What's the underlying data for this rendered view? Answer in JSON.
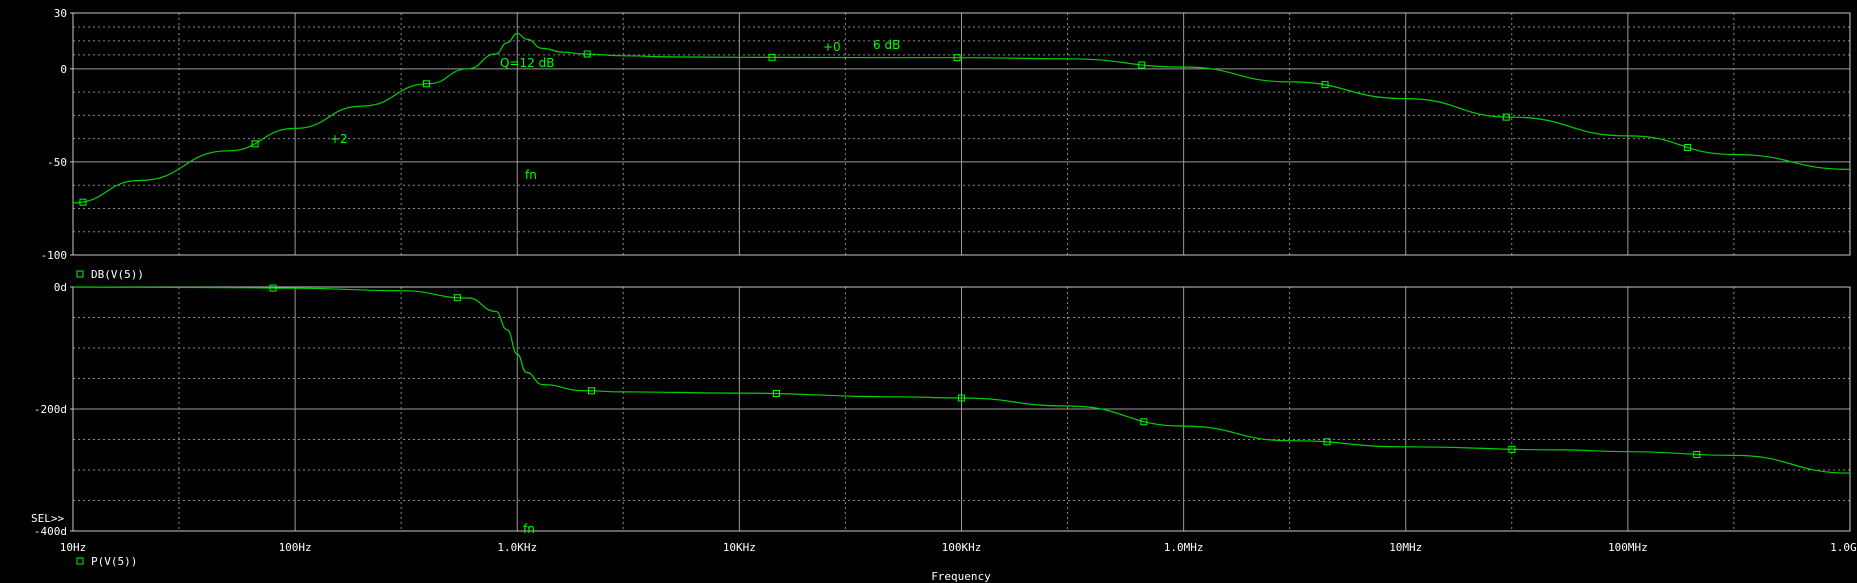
{
  "chart_data": [
    {
      "type": "line",
      "trace": "DB(V(5))",
      "xscale": "log",
      "xlim": [
        10,
        1000000000
      ],
      "ylim": [
        -100,
        30
      ],
      "yticks": [
        "30",
        "0",
        "-50",
        "-100"
      ],
      "ytick_values": [
        30,
        0,
        -50,
        -100
      ],
      "grid": true,
      "series": [
        {
          "name": "DB(V(5))",
          "x": [
            10,
            20,
            50,
            100,
            200,
            400,
            600,
            800,
            900,
            1000,
            1100,
            1300,
            1600,
            2000,
            3000,
            5000,
            10000,
            50000,
            100000,
            300000,
            1000000,
            3000000,
            10000000,
            30000000,
            100000000,
            300000000,
            1000000000
          ],
          "y": [
            -72,
            -60,
            -44,
            -32,
            -20,
            -8,
            0,
            8,
            14,
            19,
            16,
            11,
            9,
            8,
            7,
            6.4,
            6.2,
            6.0,
            6.0,
            5.4,
            1.0,
            -7,
            -16,
            -26,
            -36,
            -46,
            -54
          ]
        }
      ],
      "annotations": [
        "Q=12 dB",
        "+0",
        "6 dB",
        "+2",
        "fn"
      ]
    },
    {
      "type": "line",
      "trace": "P(V(5))",
      "xscale": "log",
      "xlim": [
        10,
        1000000000
      ],
      "ylim": [
        -400,
        0
      ],
      "yticks": [
        "0d",
        "-200d",
        "-400d"
      ],
      "ytick_values": [
        0,
        -200,
        -400
      ],
      "grid": true,
      "series": [
        {
          "name": "P(V(5))",
          "x": [
            10,
            50,
            100,
            300,
            600,
            800,
            900,
            1000,
            1100,
            1300,
            2000,
            3000,
            10000,
            50000,
            100000,
            300000,
            1000000,
            3000000,
            10000000,
            50000000,
            100000000,
            300000000,
            1000000000
          ],
          "y": [
            0,
            -1,
            -2,
            -6,
            -18,
            -40,
            -70,
            -110,
            -140,
            -160,
            -170,
            -172,
            -174,
            -180,
            -182,
            -195,
            -228,
            -252,
            -262,
            -267,
            -270,
            -276,
            -305
          ]
        }
      ],
      "annotations": [
        "fn"
      ]
    }
  ],
  "xaxis": {
    "label": "Frequency",
    "ticks": [
      "10Hz",
      "100Hz",
      "1.0KHz",
      "10KHz",
      "100KHz",
      "1.0MHz",
      "10MHz",
      "100MHz",
      "1.0GHz"
    ],
    "tick_values": [
      10,
      100,
      1000,
      10000,
      100000,
      1000000,
      10000000,
      100000000,
      1000000000
    ]
  },
  "legend": {
    "top": "DB(V(5))",
    "bottom": "P(V(5))",
    "sel": "SEL>>"
  },
  "annotations": {
    "q": "Q=12 dB",
    "plus0": "+0",
    "six_db": "6 dB",
    "plus2": "+2",
    "fn_top": "fn",
    "fn_bottom": "fn"
  },
  "colors": {
    "background": "#000000",
    "trace": "#00d000",
    "grid": "#9a9a9a",
    "text": "#ffffff"
  }
}
